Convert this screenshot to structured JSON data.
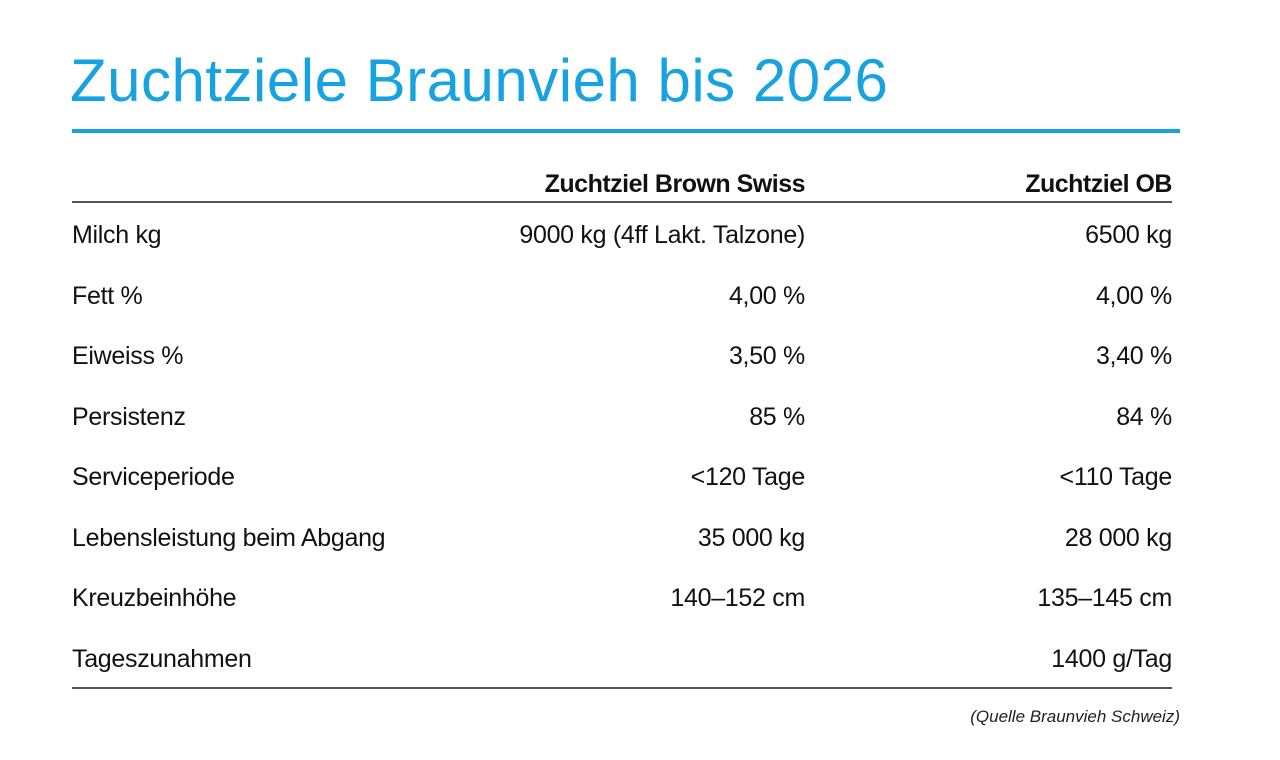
{
  "title": "Zuchtziele Braunvieh bis 2026",
  "accent_color": "#17a3e0",
  "table": {
    "headers": [
      "",
      "Zuchtziel Brown Swiss",
      "Zuchtziel OB"
    ],
    "rows": [
      [
        "Milch kg",
        "9000 kg (4ff Lakt. Talzone)",
        "6500 kg"
      ],
      [
        "Fett %",
        "4,00 %",
        "4,00 %"
      ],
      [
        "Eiweiss %",
        "3,50 %",
        "3,40 %"
      ],
      [
        "Persistenz",
        "85 %",
        "84 %"
      ],
      [
        "Serviceperiode",
        "<120 Tage",
        "<110 Tage"
      ],
      [
        "Lebensleistung beim Abgang",
        "35 000 kg",
        "28 000 kg"
      ],
      [
        "Kreuzbeinhöhe",
        "140–152 cm",
        "135–145 cm"
      ],
      [
        "Tageszunahmen",
        "",
        "1400 g/Tag"
      ]
    ]
  },
  "source": "(Quelle Braunvieh Schweiz)"
}
